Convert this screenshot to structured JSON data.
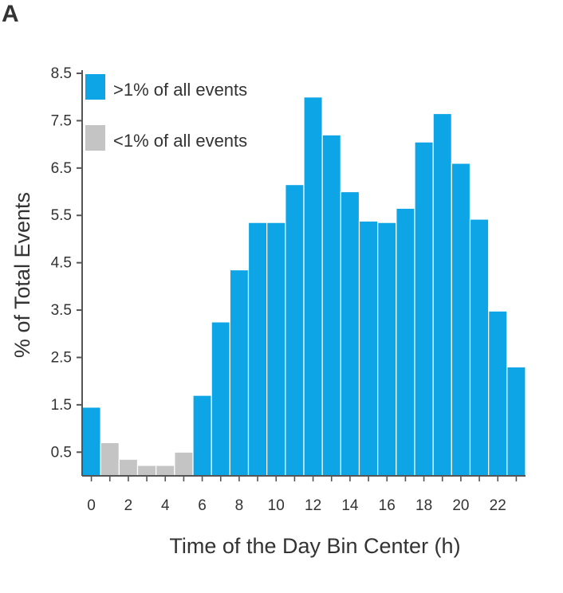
{
  "panel_label": "A",
  "colors": {
    "high": "#0ea5e6",
    "low": "#c4c4c4",
    "axis": "#555555",
    "bar_edge": "#ffffff"
  },
  "chart_data": {
    "type": "bar",
    "title": "",
    "xlabel": "Time of the Day Bin Center (h)",
    "ylabel": "% of Total  Events",
    "ylim": [
      0,
      8.5
    ],
    "yticks": [
      0.5,
      1.5,
      2.5,
      3.5,
      4.5,
      5.5,
      6.5,
      7.5,
      8.5
    ],
    "ytick_labels": [
      "0.5",
      "1.5",
      "2.5",
      "3.5",
      "4.5",
      "5.5",
      "6.5",
      "7.5",
      "8.5"
    ],
    "xlim": [
      -0.5,
      23.5
    ],
    "xticks": [
      0,
      2,
      4,
      6,
      8,
      10,
      12,
      14,
      16,
      18,
      20,
      22
    ],
    "xtick_labels": [
      "0",
      "2",
      "4",
      "6",
      "8",
      "10",
      "12",
      "14",
      "16",
      "18",
      "20",
      "22"
    ],
    "categories": [
      0,
      1,
      2,
      3,
      4,
      5,
      6,
      7,
      8,
      9,
      10,
      11,
      12,
      13,
      14,
      15,
      16,
      17,
      18,
      19,
      20,
      21,
      22,
      23
    ],
    "values": [
      1.45,
      0.7,
      0.35,
      0.22,
      0.22,
      0.5,
      1.7,
      3.25,
      4.35,
      5.35,
      5.35,
      6.15,
      8.0,
      7.2,
      6.0,
      5.38,
      5.35,
      5.65,
      7.05,
      7.65,
      6.6,
      5.42,
      3.48,
      2.3
    ],
    "groups": [
      "high",
      "low",
      "low",
      "low",
      "low",
      "low",
      "high",
      "high",
      "high",
      "high",
      "high",
      "high",
      "high",
      "high",
      "high",
      "high",
      "high",
      "high",
      "high",
      "high",
      "high",
      "high",
      "high",
      "high"
    ],
    "legend": {
      "position": "top-left",
      "entries": [
        {
          "label": ">1% of all events",
          "group": "high"
        },
        {
          "label": "<1% of all events",
          "group": "low"
        }
      ]
    },
    "grid": false
  }
}
